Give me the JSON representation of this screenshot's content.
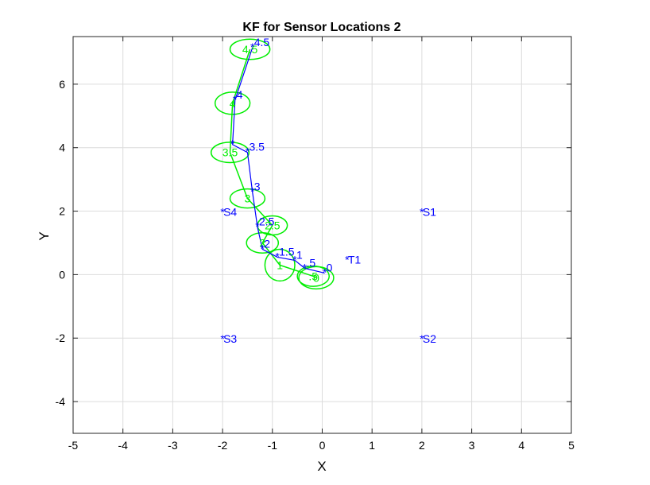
{
  "chart_data": {
    "type": "scatter",
    "title": "KF for Sensor Locations 2",
    "xlabel": "X",
    "ylabel": "Y",
    "xlim": [
      -5,
      5
    ],
    "ylim": [
      -5,
      7.5
    ],
    "xticks": [
      "-5",
      "-4",
      "-3",
      "-2",
      "-1",
      "0",
      "1",
      "2",
      "3",
      "4",
      "5"
    ],
    "yticks": [
      "-4",
      "-2",
      "0",
      "2",
      "4",
      "6"
    ],
    "grid": true,
    "colors": {
      "true_path": "#0000ff",
      "estimate": "#00ee00",
      "sensor": "#0000ff"
    },
    "sensors": [
      {
        "name": "S1",
        "x": 2,
        "y": 2
      },
      {
        "name": "S2",
        "x": 2,
        "y": -2
      },
      {
        "name": "S3",
        "x": -2,
        "y": -2
      },
      {
        "name": "S4",
        "x": -2,
        "y": 2
      },
      {
        "name": "T1",
        "x": 0.5,
        "y": 0.5
      }
    ],
    "true_path": {
      "x": [
        0.05,
        -0.35,
        -0.55,
        -0.9,
        -1.2,
        -1.3,
        -1.4,
        -1.5,
        -1.8,
        -1.75,
        -1.4
      ],
      "y": [
        0.05,
        0.2,
        0.45,
        0.55,
        0.8,
        1.5,
        2.6,
        3.85,
        4.1,
        5.5,
        7.15
      ],
      "labels": [
        "0",
        ".5",
        "1",
        "1.5",
        "2",
        "2.5",
        "3",
        "3.5",
        "",
        "4",
        "4.5"
      ]
    },
    "estimate_path": {
      "x": [
        -0.12,
        -0.18,
        -0.85,
        -1.2,
        -1.0,
        -1.5,
        -1.85,
        -1.8,
        -1.45
      ],
      "y": [
        -0.1,
        -0.05,
        0.3,
        1.0,
        1.55,
        2.4,
        3.85,
        5.4,
        7.1
      ],
      "labels": [
        "0",
        ".5",
        "1",
        "2",
        "2.5",
        "3",
        "3.5",
        "4",
        "4.5"
      ],
      "ellipse_rx": [
        0.35,
        0.32,
        0.3,
        0.32,
        0.3,
        0.35,
        0.38,
        0.35,
        0.4
      ],
      "ellipse_ry": [
        0.35,
        0.32,
        0.5,
        0.32,
        0.3,
        0.3,
        0.32,
        0.35,
        0.32
      ]
    }
  }
}
